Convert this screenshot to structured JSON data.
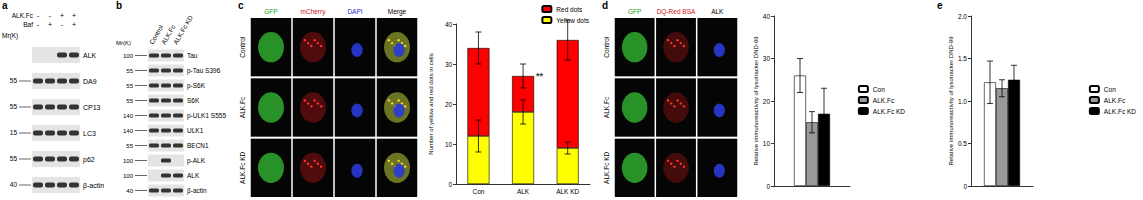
{
  "panels": {
    "a": {
      "label": "a",
      "conditions": [
        {
          "name": "ALK.Fc",
          "values": [
            "-",
            "-",
            "+",
            "+"
          ]
        },
        {
          "name": "Baf",
          "values": [
            "-",
            "+",
            "-",
            "+"
          ]
        }
      ],
      "mr_title": "Mr(K)",
      "rows": [
        {
          "name": "ALK",
          "mr": null,
          "bands": [
            false,
            false,
            true,
            true
          ]
        },
        {
          "name": "DA9",
          "mr": 55,
          "bands": [
            true,
            true,
            true,
            true
          ]
        },
        {
          "name": "CP13",
          "mr": 55,
          "bands": [
            true,
            true,
            true,
            true
          ]
        },
        {
          "name": "LC3",
          "mr": 15,
          "bands": [
            true,
            true,
            true,
            true
          ]
        },
        {
          "name": "p62",
          "mr": 55,
          "bands": [
            true,
            true,
            true,
            true
          ]
        },
        {
          "name": "β-actin",
          "mr": 40,
          "bands": [
            true,
            true,
            true,
            true
          ]
        }
      ]
    },
    "b": {
      "label": "b",
      "lanes": [
        "Control",
        "ALK.Fc",
        "ALK.Fc KD"
      ],
      "mr_title": "Mr(K)",
      "rows": [
        {
          "name": "Tau",
          "mr": 100,
          "bands": [
            true,
            true,
            true
          ]
        },
        {
          "name": "p-Tau S396",
          "mr": 55,
          "bands": [
            true,
            true,
            true
          ]
        },
        {
          "name": "p-S6K",
          "mr": 55,
          "bands": [
            true,
            true,
            true
          ]
        },
        {
          "name": "S6K",
          "mr": 55,
          "bands": [
            true,
            true,
            true
          ]
        },
        {
          "name": "p-ULK1 S555",
          "mr": 140,
          "bands": [
            true,
            true,
            true
          ]
        },
        {
          "name": "ULK1",
          "mr": 140,
          "bands": [
            true,
            true,
            true
          ]
        },
        {
          "name": "BECN1",
          "mr": 55,
          "bands": [
            true,
            true,
            true
          ]
        },
        {
          "name": "p-ALK",
          "mr": 100,
          "bands": [
            false,
            true,
            false
          ]
        },
        {
          "name": "ALK",
          "mr": 100,
          "bands": [
            false,
            true,
            true
          ]
        },
        {
          "name": "β-actin",
          "mr": 40,
          "bands": [
            true,
            true,
            true
          ]
        }
      ]
    },
    "c_images": {
      "channels": [
        "GFP",
        "mCherry",
        "DAPI",
        "Merge"
      ],
      "rows": [
        "Control",
        "ALK.Fc",
        "ALK.Fc KD"
      ]
    },
    "d_images": {
      "channels": [
        "GFP",
        "DQ-Red BSA",
        "ALK"
      ],
      "rows": [
        "Control",
        "ALK.Fc",
        "ALK.Fc KD"
      ]
    }
  },
  "chart_data": [
    {
      "panel": "c",
      "type": "bar",
      "stacked": true,
      "categories": [
        "Con",
        "ALK",
        "ALK KD"
      ],
      "series": [
        {
          "name": "Yellow dots",
          "color": "#ffff00",
          "values": [
            12,
            18,
            9
          ],
          "errors": [
            4,
            3,
            1.5
          ]
        },
        {
          "name": "Red dots",
          "color": "#ff0000",
          "values": [
            22,
            9,
            27
          ],
          "errors": [
            4,
            3,
            5
          ]
        }
      ],
      "ylabel": "Number of yellow and red dots in cells",
      "ylim": [
        0,
        40
      ],
      "yticks": [
        0,
        10,
        20,
        30,
        40
      ],
      "legend": "top-right",
      "annotations": [
        {
          "category": "ALK",
          "text": "**"
        }
      ]
    },
    {
      "panel": "d",
      "type": "bar",
      "categories": [
        null
      ],
      "series": [
        {
          "name": "Con",
          "color": "#ffffff",
          "values": [
            26
          ],
          "errors": [
            4
          ]
        },
        {
          "name": "ALK.Fc",
          "color": "#999999",
          "values": [
            15
          ],
          "errors": [
            2.5
          ]
        },
        {
          "name": "ALK.Fc KD",
          "color": "#000000",
          "values": [
            17
          ],
          "errors": [
            6
          ]
        }
      ],
      "ylabel": "Relative immunoreactivity of lysotracker DND-99",
      "ylim": [
        0,
        40
      ],
      "yticks": [
        0,
        10,
        20,
        30,
        40
      ],
      "legend": "right",
      "tick_labels": "y"
    },
    {
      "panel": "e",
      "type": "bar",
      "categories": [
        null
      ],
      "series": [
        {
          "name": "Con",
          "color": "#ffffff",
          "values": [
            1.22
          ],
          "errors": [
            0.25
          ]
        },
        {
          "name": "ALK.Fc",
          "color": "#999999",
          "values": [
            1.15
          ],
          "errors": [
            0.1
          ]
        },
        {
          "name": "ALK.Fc KD",
          "color": "#000000",
          "values": [
            1.25
          ],
          "errors": [
            0.17
          ]
        }
      ],
      "ylabel": "Relative immunoreactivity of lysotracker DND-99",
      "ylim": [
        0,
        2
      ],
      "yticks": [
        0,
        0.5,
        {
          "value": 1,
          "label": "1.0"
        },
        1.5,
        {
          "value": 2,
          "label": "2.0"
        }
      ],
      "legend": "right",
      "tick_labels": "y"
    }
  ]
}
